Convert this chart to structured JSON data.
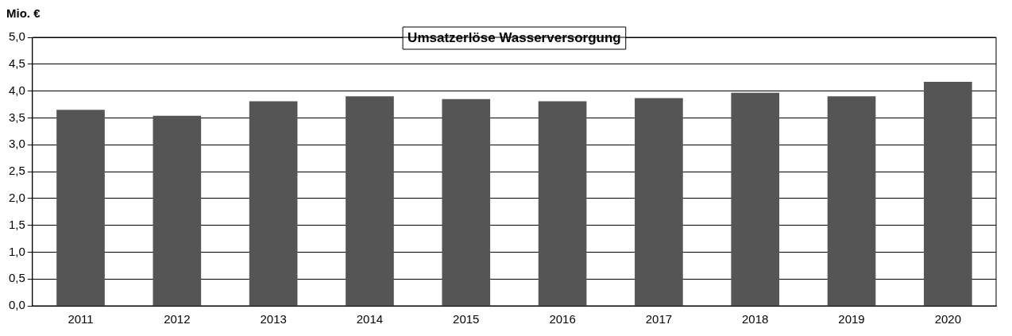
{
  "chart_data": {
    "type": "bar",
    "title": "Umsatzerlöse Wasserversorgung",
    "ylabel": "Mio. €",
    "categories": [
      "2011",
      "2012",
      "2013",
      "2014",
      "2015",
      "2016",
      "2017",
      "2018",
      "2019",
      "2020"
    ],
    "values": [
      3.65,
      3.54,
      3.81,
      3.9,
      3.85,
      3.81,
      3.87,
      3.97,
      3.9,
      4.17
    ],
    "color": "#555555",
    "ylim": [
      0,
      5
    ],
    "yticks": [
      {
        "value": 0,
        "label": "0,0"
      },
      {
        "value": 0.5,
        "label": "0,5"
      },
      {
        "value": 1,
        "label": "1,0"
      },
      {
        "value": 1.5,
        "label": "1,5"
      },
      {
        "value": 2,
        "label": "2,0"
      },
      {
        "value": 2.5,
        "label": "2,5"
      },
      {
        "value": 3,
        "label": "3,0"
      },
      {
        "value": 3.5,
        "label": "3,5"
      },
      {
        "value": 4,
        "label": "4,0"
      },
      {
        "value": 4.5,
        "label": "4,5"
      },
      {
        "value": 5,
        "label": "5,0"
      }
    ],
    "grid": "y"
  }
}
